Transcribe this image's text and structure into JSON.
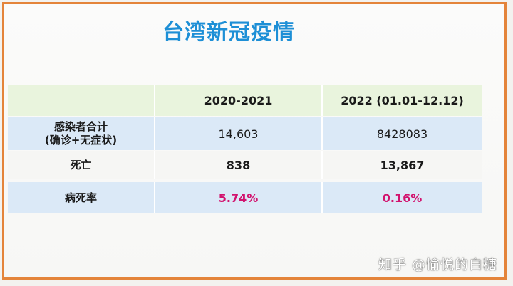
{
  "title": "台湾新冠疫情",
  "table": {
    "headers": [
      "",
      "2020-2021",
      "2022 (01.01-12.12)"
    ],
    "rows": [
      {
        "label_line1": "感染者合计",
        "label_line2": "(确诊+无症状)",
        "v1": "14,603",
        "v2": "8428083"
      },
      {
        "label_line1": "死亡",
        "label_line2": "",
        "v1": "838",
        "v2": "13,867"
      },
      {
        "label_line1": "病死率",
        "label_line2": "",
        "v1": "5.74%",
        "v2": "0.16%"
      }
    ]
  },
  "watermark": "知乎 @愉悦的白糖",
  "colors": {
    "border": "#e4843a",
    "title": "#1d8fd6",
    "highlight": "#d2136e",
    "header_bg": "#e9f4dd",
    "row_blue_bg": "#dbe9f7"
  }
}
